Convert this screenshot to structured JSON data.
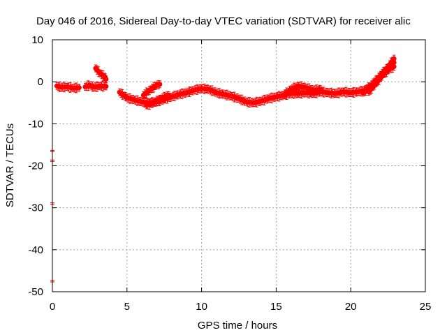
{
  "chart_data": {
    "type": "scatter",
    "title": "Day 046 of 2016, Sidereal Day-to-day VTEC variation (SDTVAR) for receiver alic",
    "xlabel": "GPS time / hours",
    "ylabel": "SDTVAR / TECUs",
    "xlim": [
      0,
      25
    ],
    "ylim": [
      -50,
      10
    ],
    "xticks": [
      0,
      5,
      10,
      15,
      20,
      25
    ],
    "yticks": [
      -50,
      -40,
      -30,
      -20,
      -10,
      0,
      10
    ],
    "grid": true,
    "colors": {
      "series": "#ff0000",
      "grid": "#a0a0a0",
      "axis": "#000000"
    },
    "series": [
      {
        "name": "SDTVAR",
        "segments": [
          [
            [
              0.3,
              -1.0
            ],
            [
              0.6,
              -1.3
            ],
            [
              1.0,
              -1.2
            ],
            [
              1.4,
              -1.5
            ],
            [
              1.8,
              -1.4
            ]
          ],
          [
            [
              2.2,
              -1.2
            ],
            [
              2.5,
              -0.8
            ],
            [
              2.8,
              -1.3
            ],
            [
              3.2,
              -1.0
            ],
            [
              3.6,
              -1.1
            ]
          ],
          [
            [
              2.9,
              3.2
            ],
            [
              3.2,
              2.0
            ],
            [
              3.5,
              1.2
            ],
            [
              3.6,
              0.6
            ]
          ],
          [
            [
              4.5,
              -2.5
            ],
            [
              5.0,
              -3.8
            ],
            [
              5.5,
              -4.3
            ],
            [
              6.0,
              -4.8
            ],
            [
              6.5,
              -5.0
            ],
            [
              7.0,
              -4.8
            ],
            [
              7.5,
              -4.2
            ],
            [
              8.0,
              -3.6
            ],
            [
              8.5,
              -3.0
            ],
            [
              9.0,
              -2.6
            ],
            [
              9.5,
              -2.0
            ],
            [
              10.0,
              -1.6
            ],
            [
              10.5,
              -1.8
            ],
            [
              11.0,
              -2.6
            ],
            [
              11.5,
              -3.0
            ],
            [
              12.0,
              -3.4
            ],
            [
              12.5,
              -4.0
            ],
            [
              13.0,
              -4.8
            ],
            [
              13.5,
              -5.0
            ],
            [
              14.0,
              -4.6
            ],
            [
              14.5,
              -4.0
            ],
            [
              15.0,
              -3.6
            ],
            [
              15.5,
              -3.2
            ],
            [
              16.0,
              -2.8
            ],
            [
              16.5,
              -2.8
            ],
            [
              17.0,
              -2.6
            ],
            [
              17.5,
              -2.8
            ],
            [
              18.0,
              -2.4
            ],
            [
              18.5,
              -2.6
            ],
            [
              19.0,
              -2.8
            ],
            [
              19.5,
              -2.4
            ],
            [
              20.0,
              -2.6
            ],
            [
              20.5,
              -2.4
            ],
            [
              21.0,
              -2.0
            ],
            [
              21.5,
              -0.5
            ],
            [
              22.0,
              1.5
            ],
            [
              22.5,
              3.5
            ],
            [
              22.9,
              5.5
            ]
          ],
          [
            [
              6.1,
              -3.2
            ],
            [
              6.6,
              -1.8
            ],
            [
              7.0,
              -0.8
            ],
            [
              7.2,
              -0.6
            ]
          ],
          [
            [
              6.3,
              -5.6
            ],
            [
              6.8,
              -5.0
            ],
            [
              7.3,
              -4.0
            ],
            [
              7.8,
              -3.2
            ]
          ],
          [
            [
              15.5,
              -3.2
            ],
            [
              16.0,
              -1.8
            ],
            [
              16.5,
              -1.0
            ],
            [
              17.0,
              -1.4
            ],
            [
              17.5,
              -2.0
            ],
            [
              18.0,
              -1.8
            ]
          ],
          [
            [
              21.2,
              -2.4
            ],
            [
              21.7,
              -0.4
            ],
            [
              22.2,
              1.8
            ],
            [
              22.6,
              3.0
            ],
            [
              22.9,
              3.6
            ]
          ],
          [
            [
              20.8,
              -2.6
            ],
            [
              21.3,
              -1.2
            ],
            [
              21.8,
              0.6
            ],
            [
              22.3,
              2.4
            ],
            [
              22.9,
              4.6
            ]
          ]
        ],
        "isolated_points": [
          [
            0.0,
            -16.5
          ],
          [
            0.0,
            -18.8
          ],
          [
            0.0,
            -29.0
          ],
          [
            0.0,
            -47.5
          ]
        ]
      }
    ]
  }
}
